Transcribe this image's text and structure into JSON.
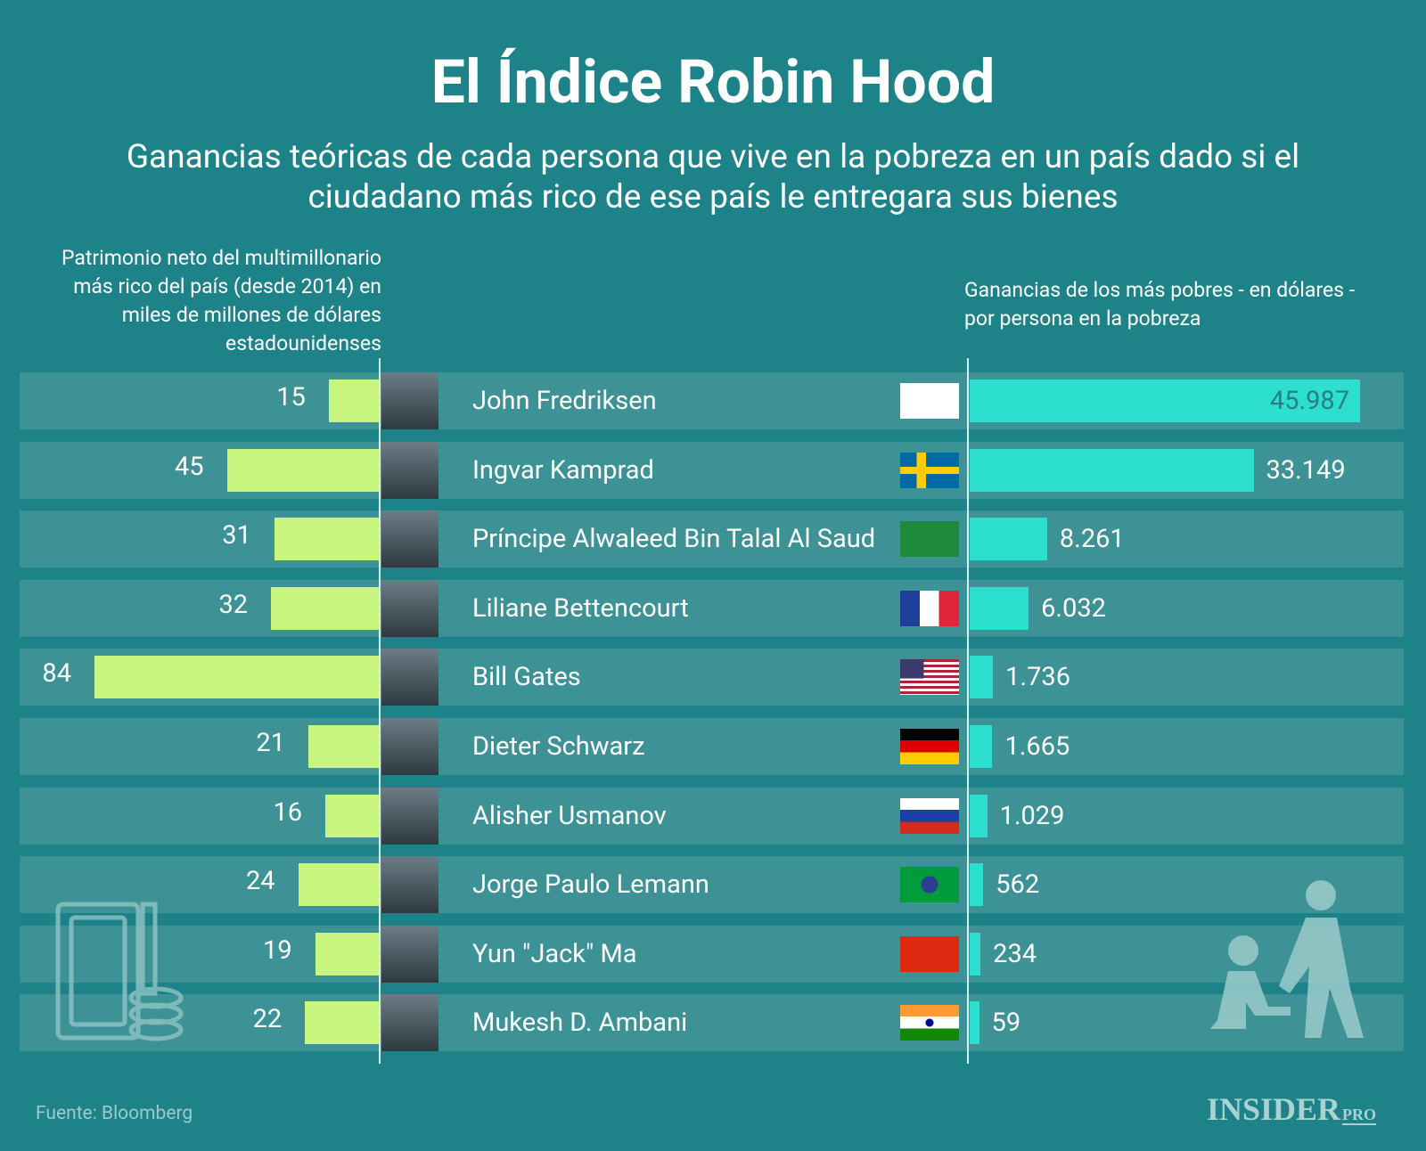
{
  "chart_data": {
    "type": "bar",
    "title": "El Índice Robin Hood",
    "subtitle": "Ganancias teóricas de cada persona que vive en la pobreza en un país dado si el ciudadano más rico de ese país le entregara sus bienes",
    "categories": [
      "John Fredriksen",
      "Ingvar Kamprad",
      "Príncipe Alwaleed Bin Talal Al Saud",
      "Liliane Bettencourt",
      "Bill Gates",
      "Dieter Schwarz",
      "Alisher Usmanov",
      "Jorge Paulo Lemann",
      "Yun \"Jack\" Ma",
      "Mukesh D. Ambani"
    ],
    "series": [
      {
        "name": "Patrimonio neto del multimillonario más rico del país (desde 2014) en miles de millones de dólares estadounidenses",
        "color": "#c8f57e",
        "values": [
          15,
          45,
          31,
          32,
          84,
          21,
          16,
          24,
          19,
          22
        ]
      },
      {
        "name": "Ganancias de los más pobres - en dólares - por persona en la pobreza",
        "color": "#2ddfcf",
        "values": [
          45987,
          33149,
          8261,
          6032,
          1736,
          1665,
          1029,
          562,
          234,
          59
        ],
        "value_labels": [
          "45.987",
          "33.149",
          "8.261",
          "6.032",
          "1.736",
          "1.665",
          "1.029",
          "562",
          "234",
          "59"
        ]
      }
    ],
    "source": "Fuente: Bloomberg",
    "logo": "INSIDER",
    "logo_suffix": "PRO"
  }
}
